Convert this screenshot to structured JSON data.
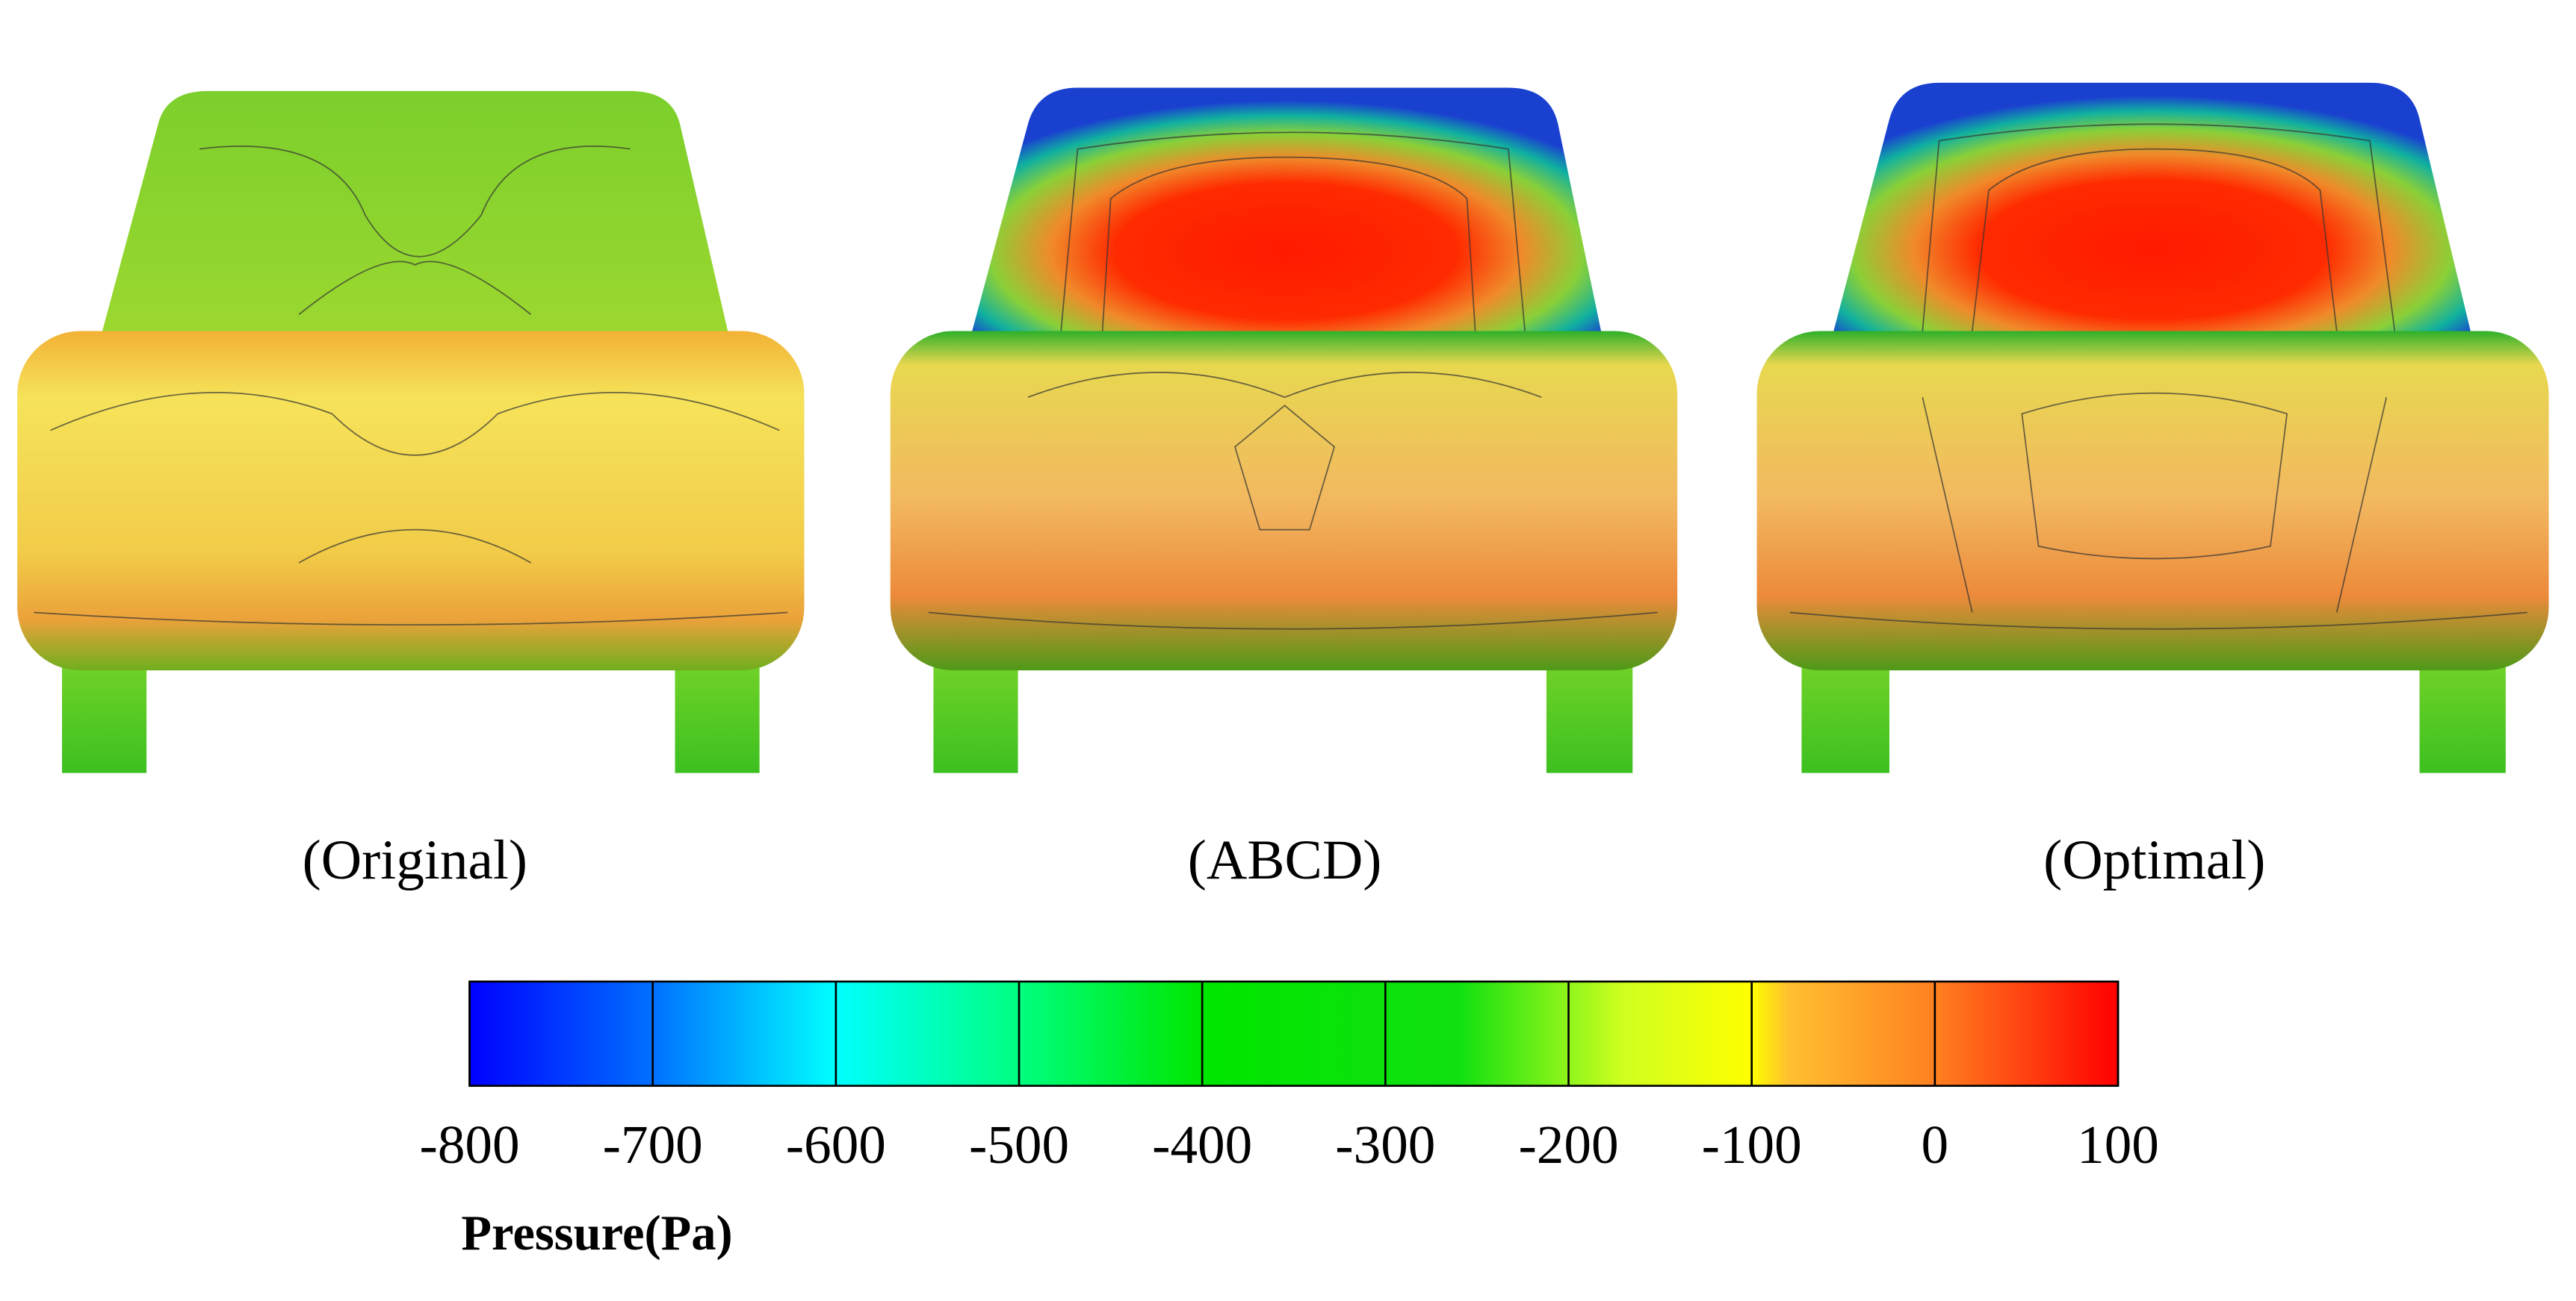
{
  "panels": [
    {
      "label": "(Original)"
    },
    {
      "label": "(ABCD)"
    },
    {
      "label": "(Optimal)"
    }
  ],
  "colorbar": {
    "title": "Pressure(Pa)",
    "lim": [
      -800,
      100
    ],
    "ticks": [
      -800,
      -700,
      -600,
      -500,
      -400,
      -300,
      -200,
      -100,
      0,
      100
    ]
  }
}
